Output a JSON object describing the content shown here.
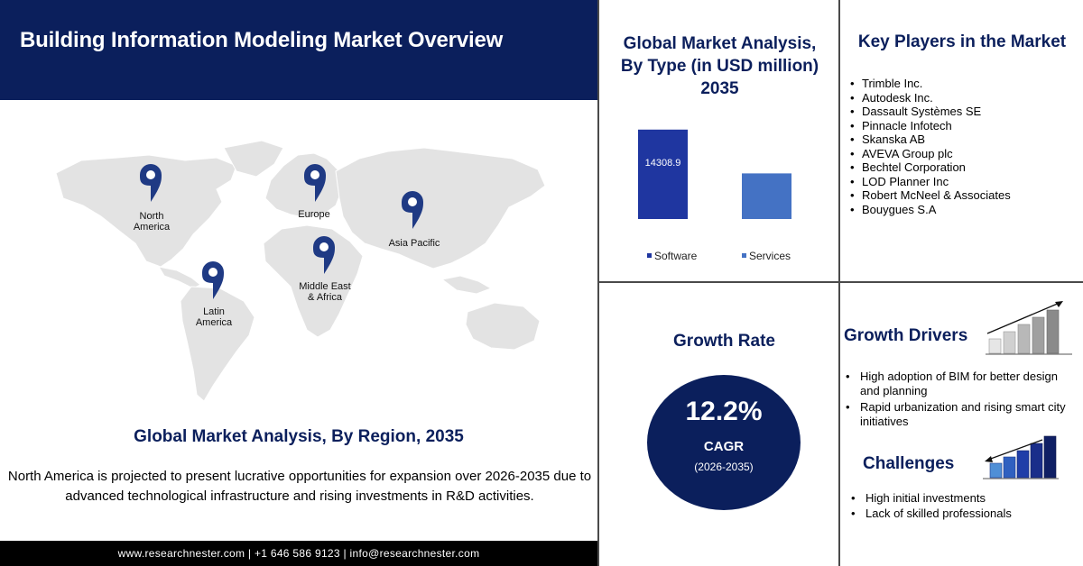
{
  "header": {
    "title": "Building Information Modeling Market Overview"
  },
  "map": {
    "regions": [
      {
        "name": "North\nAmerica"
      },
      {
        "name": "Europe"
      },
      {
        "name": "Asia Pacific"
      },
      {
        "name": "Middle East\n& Africa"
      },
      {
        "name": "Latin\nAmerica"
      }
    ],
    "land_color": "#e3e3e3",
    "pin_color": "#1f3a84"
  },
  "region_section": {
    "heading": "Global Market Analysis, By Region, 2035",
    "description": "North America is projected to present lucrative opportunities for expansion over 2026-2035 due to advanced technological infrastructure and rising investments in R&D activities."
  },
  "footer": {
    "text": "www.researchnester.com | +1 646 586 9123 | info@researchnester.com"
  },
  "type_section": {
    "title_line1": "Global Market Analysis,",
    "title_line2": "By Type (in USD million)",
    "title_line3": "2035"
  },
  "chart_data": {
    "type": "bar",
    "title": "Global Market Analysis, By Type (in USD million) 2035",
    "categories": [
      "Software",
      "Services"
    ],
    "values": [
      14308.9,
      7300
    ],
    "data_labels": [
      "14308.9",
      ""
    ],
    "colors": [
      "#1f36a0",
      "#4472c4"
    ],
    "ylim": [
      0,
      15000
    ],
    "grid": false,
    "legend": "bottom"
  },
  "players": {
    "title": "Key Players in the Market",
    "items": [
      "Trimble Inc.",
      "Autodesk Inc.",
      "Dassault Systèmes SE",
      "Pinnacle Infotech",
      "Skanska AB",
      "AVEVA Group plc",
      "Bechtel Corporation",
      "LOD Planner Inc",
      "Robert McNeel & Associates",
      "Bouygues S.A"
    ]
  },
  "growth": {
    "title": "Growth Rate",
    "value": "12.2%",
    "label": "CAGR",
    "period": "(2026-2035)",
    "circle_color": "#0b1f5c"
  },
  "drivers": {
    "title": "Growth Drivers",
    "icon": "rising-bars-icon",
    "items": [
      "High adoption of BIM for better design and planning",
      "Rapid urbanization and rising smart city initiatives"
    ]
  },
  "challenges": {
    "title": "Challenges",
    "icon": "falling-bars-icon",
    "items": [
      "High initial investments",
      "Lack of skilled professionals"
    ]
  },
  "colors": {
    "navy": "#0b1f5c",
    "divider": "#4a4a4a"
  }
}
